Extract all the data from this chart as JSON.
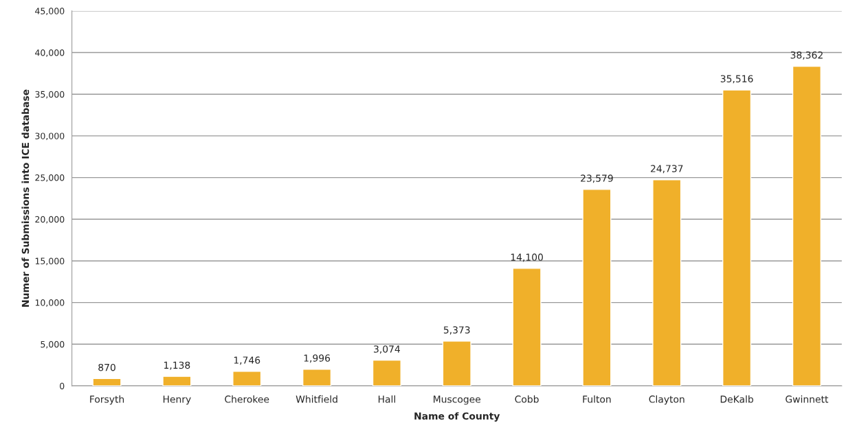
{
  "chart_data": {
    "type": "bar",
    "xlabel": "Name of County",
    "ylabel": "Numer of Submissions into ICE database",
    "categories": [
      "Forsyth",
      "Henry",
      "Cherokee",
      "Whitfield",
      "Hall",
      "Muscogee",
      "Cobb",
      "Fulton",
      "Clayton",
      "DeKalb",
      "Gwinnett"
    ],
    "values": [
      870,
      1138,
      1746,
      1996,
      3074,
      5373,
      14100,
      23579,
      24737,
      35516,
      38362
    ],
    "value_labels": [
      "870",
      "1,138",
      "1,746",
      "1,996",
      "3,074",
      "5,373",
      "14,100",
      "23,579",
      "24,737",
      "35,516",
      "38,362"
    ],
    "color": "#f0b02a",
    "ylim": [
      0,
      45000
    ],
    "yticks": [
      {
        "value": 0,
        "label": "0"
      },
      {
        "value": 5000,
        "label": "5,000"
      },
      {
        "value": 10000,
        "label": "10,000"
      },
      {
        "value": 15000,
        "label": "15,000"
      },
      {
        "value": 20000,
        "label": "20,000"
      },
      {
        "value": 25000,
        "label": "25,000"
      },
      {
        "value": 30000,
        "label": "30,000"
      },
      {
        "value": 35000,
        "label": "35,000"
      },
      {
        "value": 40000,
        "label": "40,000"
      },
      {
        "value": 45000,
        "label": "45,000"
      }
    ],
    "grid": "y",
    "legend": false
  }
}
